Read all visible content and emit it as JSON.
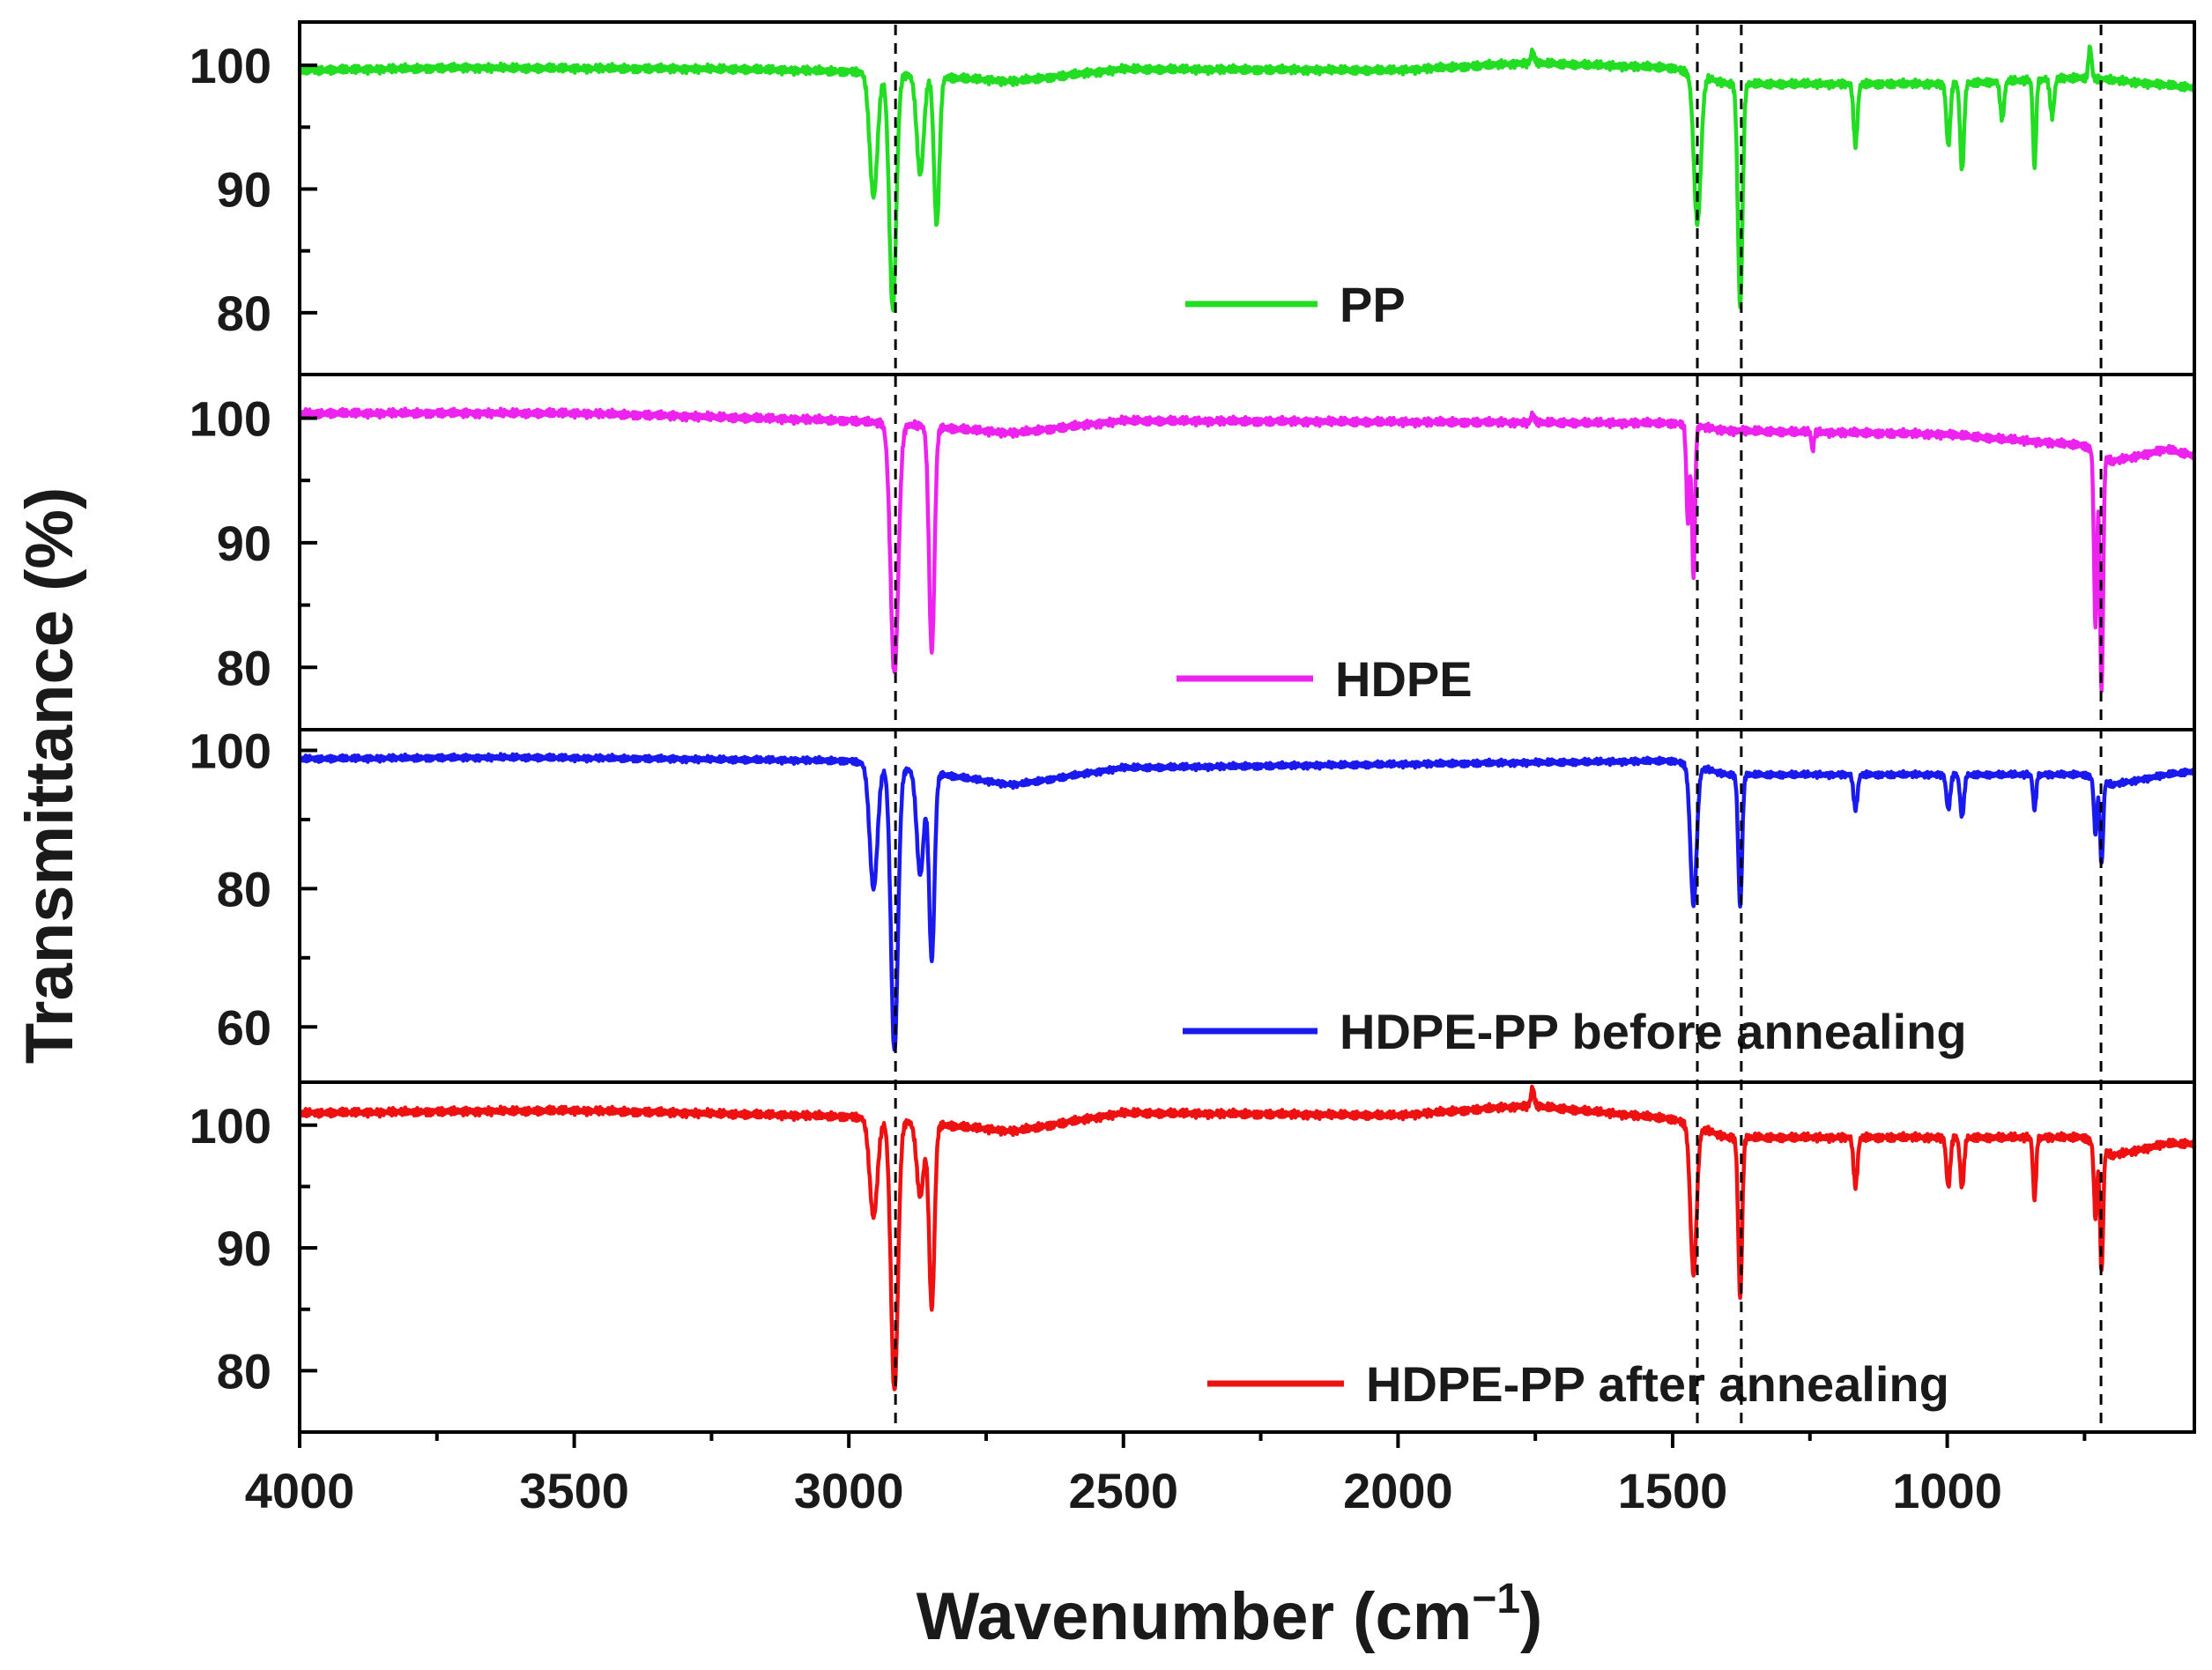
{
  "chart_data": {
    "type": "line",
    "title": "",
    "xlabel": "Wavenumber (cm",
    "xlabel_sup": "−1",
    "xlabel_close": ")",
    "ylabel": "Transmittance (%)",
    "xlim": [
      4000,
      550
    ],
    "xticks": [
      4000,
      3500,
      3000,
      2500,
      2000,
      1500,
      1000
    ],
    "reference_lines": [
      2915,
      1455,
      1375,
      720
    ],
    "panels": [
      {
        "name": "PP",
        "color": "#22dd22",
        "ylim": [
          75,
          103.5
        ],
        "yticks": [
          100,
          90,
          80
        ],
        "baseline": [
          [
            4000,
            99.6
          ],
          [
            3700,
            99.8
          ],
          [
            3200,
            99.7
          ],
          [
            3000,
            99.5
          ],
          [
            2700,
            98.7
          ],
          [
            2500,
            99.7
          ],
          [
            2000,
            99.6
          ],
          [
            1760,
            100.2
          ],
          [
            1500,
            99.8
          ],
          [
            1400,
            98.5
          ],
          [
            1300,
            98.5
          ],
          [
            1200,
            98.5
          ],
          [
            1000,
            98.5
          ],
          [
            750,
            99.0
          ],
          [
            550,
            98.2
          ]
        ],
        "peaks": [
          {
            "x": 2955,
            "depth": 10,
            "w": 10
          },
          {
            "x": 2920,
            "depth": 19,
            "w": 9
          },
          {
            "x": 2870,
            "depth": 8,
            "w": 9
          },
          {
            "x": 2840,
            "depth": 12,
            "w": 7
          },
          {
            "x": 1455,
            "depth": 12,
            "w": 9
          },
          {
            "x": 1377,
            "depth": 18,
            "w": 6
          },
          {
            "x": 1167,
            "depth": 5,
            "w": 5
          },
          {
            "x": 998,
            "depth": 5,
            "w": 5
          },
          {
            "x": 973,
            "depth": 7,
            "w": 5
          },
          {
            "x": 900,
            "depth": 3,
            "w": 5
          },
          {
            "x": 841,
            "depth": 7,
            "w": 4
          },
          {
            "x": 809,
            "depth": 3,
            "w": 5
          },
          {
            "x": 1755,
            "depth": -1,
            "w": 4
          },
          {
            "x": 740,
            "depth": -2.5,
            "w": 4
          }
        ]
      },
      {
        "name": "HDPE",
        "color": "#ee22ee",
        "ylim": [
          75,
          103.5
        ],
        "yticks": [
          100,
          90,
          80
        ],
        "baseline": [
          [
            4000,
            100.4
          ],
          [
            3500,
            100.4
          ],
          [
            3000,
            99.8
          ],
          [
            2700,
            98.8
          ],
          [
            2500,
            99.8
          ],
          [
            2000,
            99.7
          ],
          [
            1500,
            99.6
          ],
          [
            1400,
            99.0
          ],
          [
            1000,
            98.7
          ],
          [
            750,
            97.8
          ],
          [
            700,
            96.5
          ],
          [
            600,
            97.5
          ],
          [
            550,
            97.0
          ]
        ],
        "peaks": [
          {
            "x": 2917,
            "depth": 20,
            "w": 10
          },
          {
            "x": 2849,
            "depth": 18,
            "w": 7
          },
          {
            "x": 1472,
            "depth": 8,
            "w": 4
          },
          {
            "x": 1462,
            "depth": 12,
            "w": 4
          },
          {
            "x": 1245,
            "depth": 1.5,
            "w": 3
          },
          {
            "x": 730,
            "depth": 14,
            "w": 4
          },
          {
            "x": 719,
            "depth": 19,
            "w": 4
          },
          {
            "x": 1755,
            "depth": -0.7,
            "w": 4
          }
        ]
      },
      {
        "name": "HDPE-PP before annealing",
        "color": "#1a1aee",
        "ylim": [
          52,
          103
        ],
        "yticks": [
          100,
          80,
          60
        ],
        "baseline": [
          [
            4000,
            98.8
          ],
          [
            3600,
            99.0
          ],
          [
            3000,
            98.5
          ],
          [
            2700,
            95.0
          ],
          [
            2500,
            97.5
          ],
          [
            2000,
            98.0
          ],
          [
            1500,
            98.5
          ],
          [
            1400,
            96.5
          ],
          [
            1000,
            96.5
          ],
          [
            750,
            96.5
          ],
          [
            700,
            95.0
          ],
          [
            600,
            96.5
          ],
          [
            550,
            97.0
          ]
        ],
        "peaks": [
          {
            "x": 2955,
            "depth": 18,
            "w": 10
          },
          {
            "x": 2917,
            "depth": 41,
            "w": 9
          },
          {
            "x": 2870,
            "depth": 15,
            "w": 9
          },
          {
            "x": 2849,
            "depth": 27,
            "w": 7
          },
          {
            "x": 1462,
            "depth": 20,
            "w": 8
          },
          {
            "x": 1377,
            "depth": 19,
            "w": 5
          },
          {
            "x": 1167,
            "depth": 5,
            "w": 5
          },
          {
            "x": 998,
            "depth": 5,
            "w": 5
          },
          {
            "x": 973,
            "depth": 6,
            "w": 5
          },
          {
            "x": 841,
            "depth": 5,
            "w": 4
          },
          {
            "x": 730,
            "depth": 8,
            "w": 4
          },
          {
            "x": 719,
            "depth": 12,
            "w": 4
          }
        ]
      },
      {
        "name": "HDPE-PP after annealing",
        "color": "#ee1111",
        "ylim": [
          75,
          103.5
        ],
        "yticks": [
          100,
          90,
          80
        ],
        "baseline": [
          [
            4000,
            101.0
          ],
          [
            3500,
            101.2
          ],
          [
            3000,
            100.7
          ],
          [
            2700,
            99.5
          ],
          [
            2500,
            101.0
          ],
          [
            2000,
            100.8
          ],
          [
            1760,
            101.6
          ],
          [
            1500,
            100.5
          ],
          [
            1400,
            99.0
          ],
          [
            1000,
            99.0
          ],
          [
            750,
            99.0
          ],
          [
            700,
            97.5
          ],
          [
            600,
            98.5
          ],
          [
            550,
            98.5
          ]
        ],
        "peaks": [
          {
            "x": 2955,
            "depth": 8,
            "w": 10
          },
          {
            "x": 2917,
            "depth": 22,
            "w": 9
          },
          {
            "x": 2870,
            "depth": 6,
            "w": 9
          },
          {
            "x": 2849,
            "depth": 15,
            "w": 7
          },
          {
            "x": 1462,
            "depth": 12,
            "w": 8
          },
          {
            "x": 1377,
            "depth": 13,
            "w": 5
          },
          {
            "x": 1167,
            "depth": 4,
            "w": 5
          },
          {
            "x": 998,
            "depth": 4,
            "w": 5
          },
          {
            "x": 973,
            "depth": 4,
            "w": 5
          },
          {
            "x": 841,
            "depth": 5,
            "w": 4
          },
          {
            "x": 730,
            "depth": 6,
            "w": 4
          },
          {
            "x": 719,
            "depth": 10,
            "w": 4
          },
          {
            "x": 1755,
            "depth": -1.5,
            "w": 4
          }
        ]
      }
    ]
  }
}
